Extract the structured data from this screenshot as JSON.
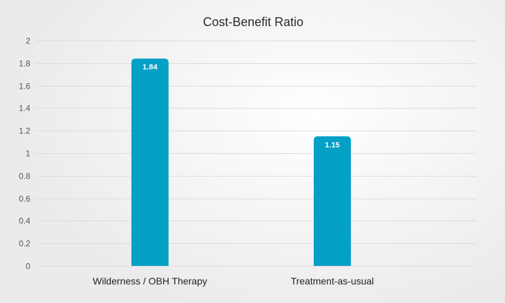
{
  "chart_data": {
    "type": "bar",
    "title": "Cost-Benefit Ratio",
    "categories": [
      "Wilderness / OBH Therapy",
      "Treatment-as-usual"
    ],
    "values": [
      1.84,
      1.15
    ],
    "value_labels": [
      "1.84",
      "1.15"
    ],
    "ylim": [
      0,
      2
    ],
    "yticks": [
      0,
      0.2,
      0.4,
      0.6,
      0.8,
      1,
      1.2,
      1.4,
      1.6,
      1.8,
      2
    ],
    "ytick_labels": [
      "0",
      "0.2",
      "0.4",
      "0.6",
      "0.8",
      "1",
      "1.2",
      "1.4",
      "1.6",
      "1.8",
      "2"
    ],
    "xlabel": "",
    "ylabel": "",
    "grid": true,
    "legend": "none",
    "bar_color": "#05a0c6"
  }
}
